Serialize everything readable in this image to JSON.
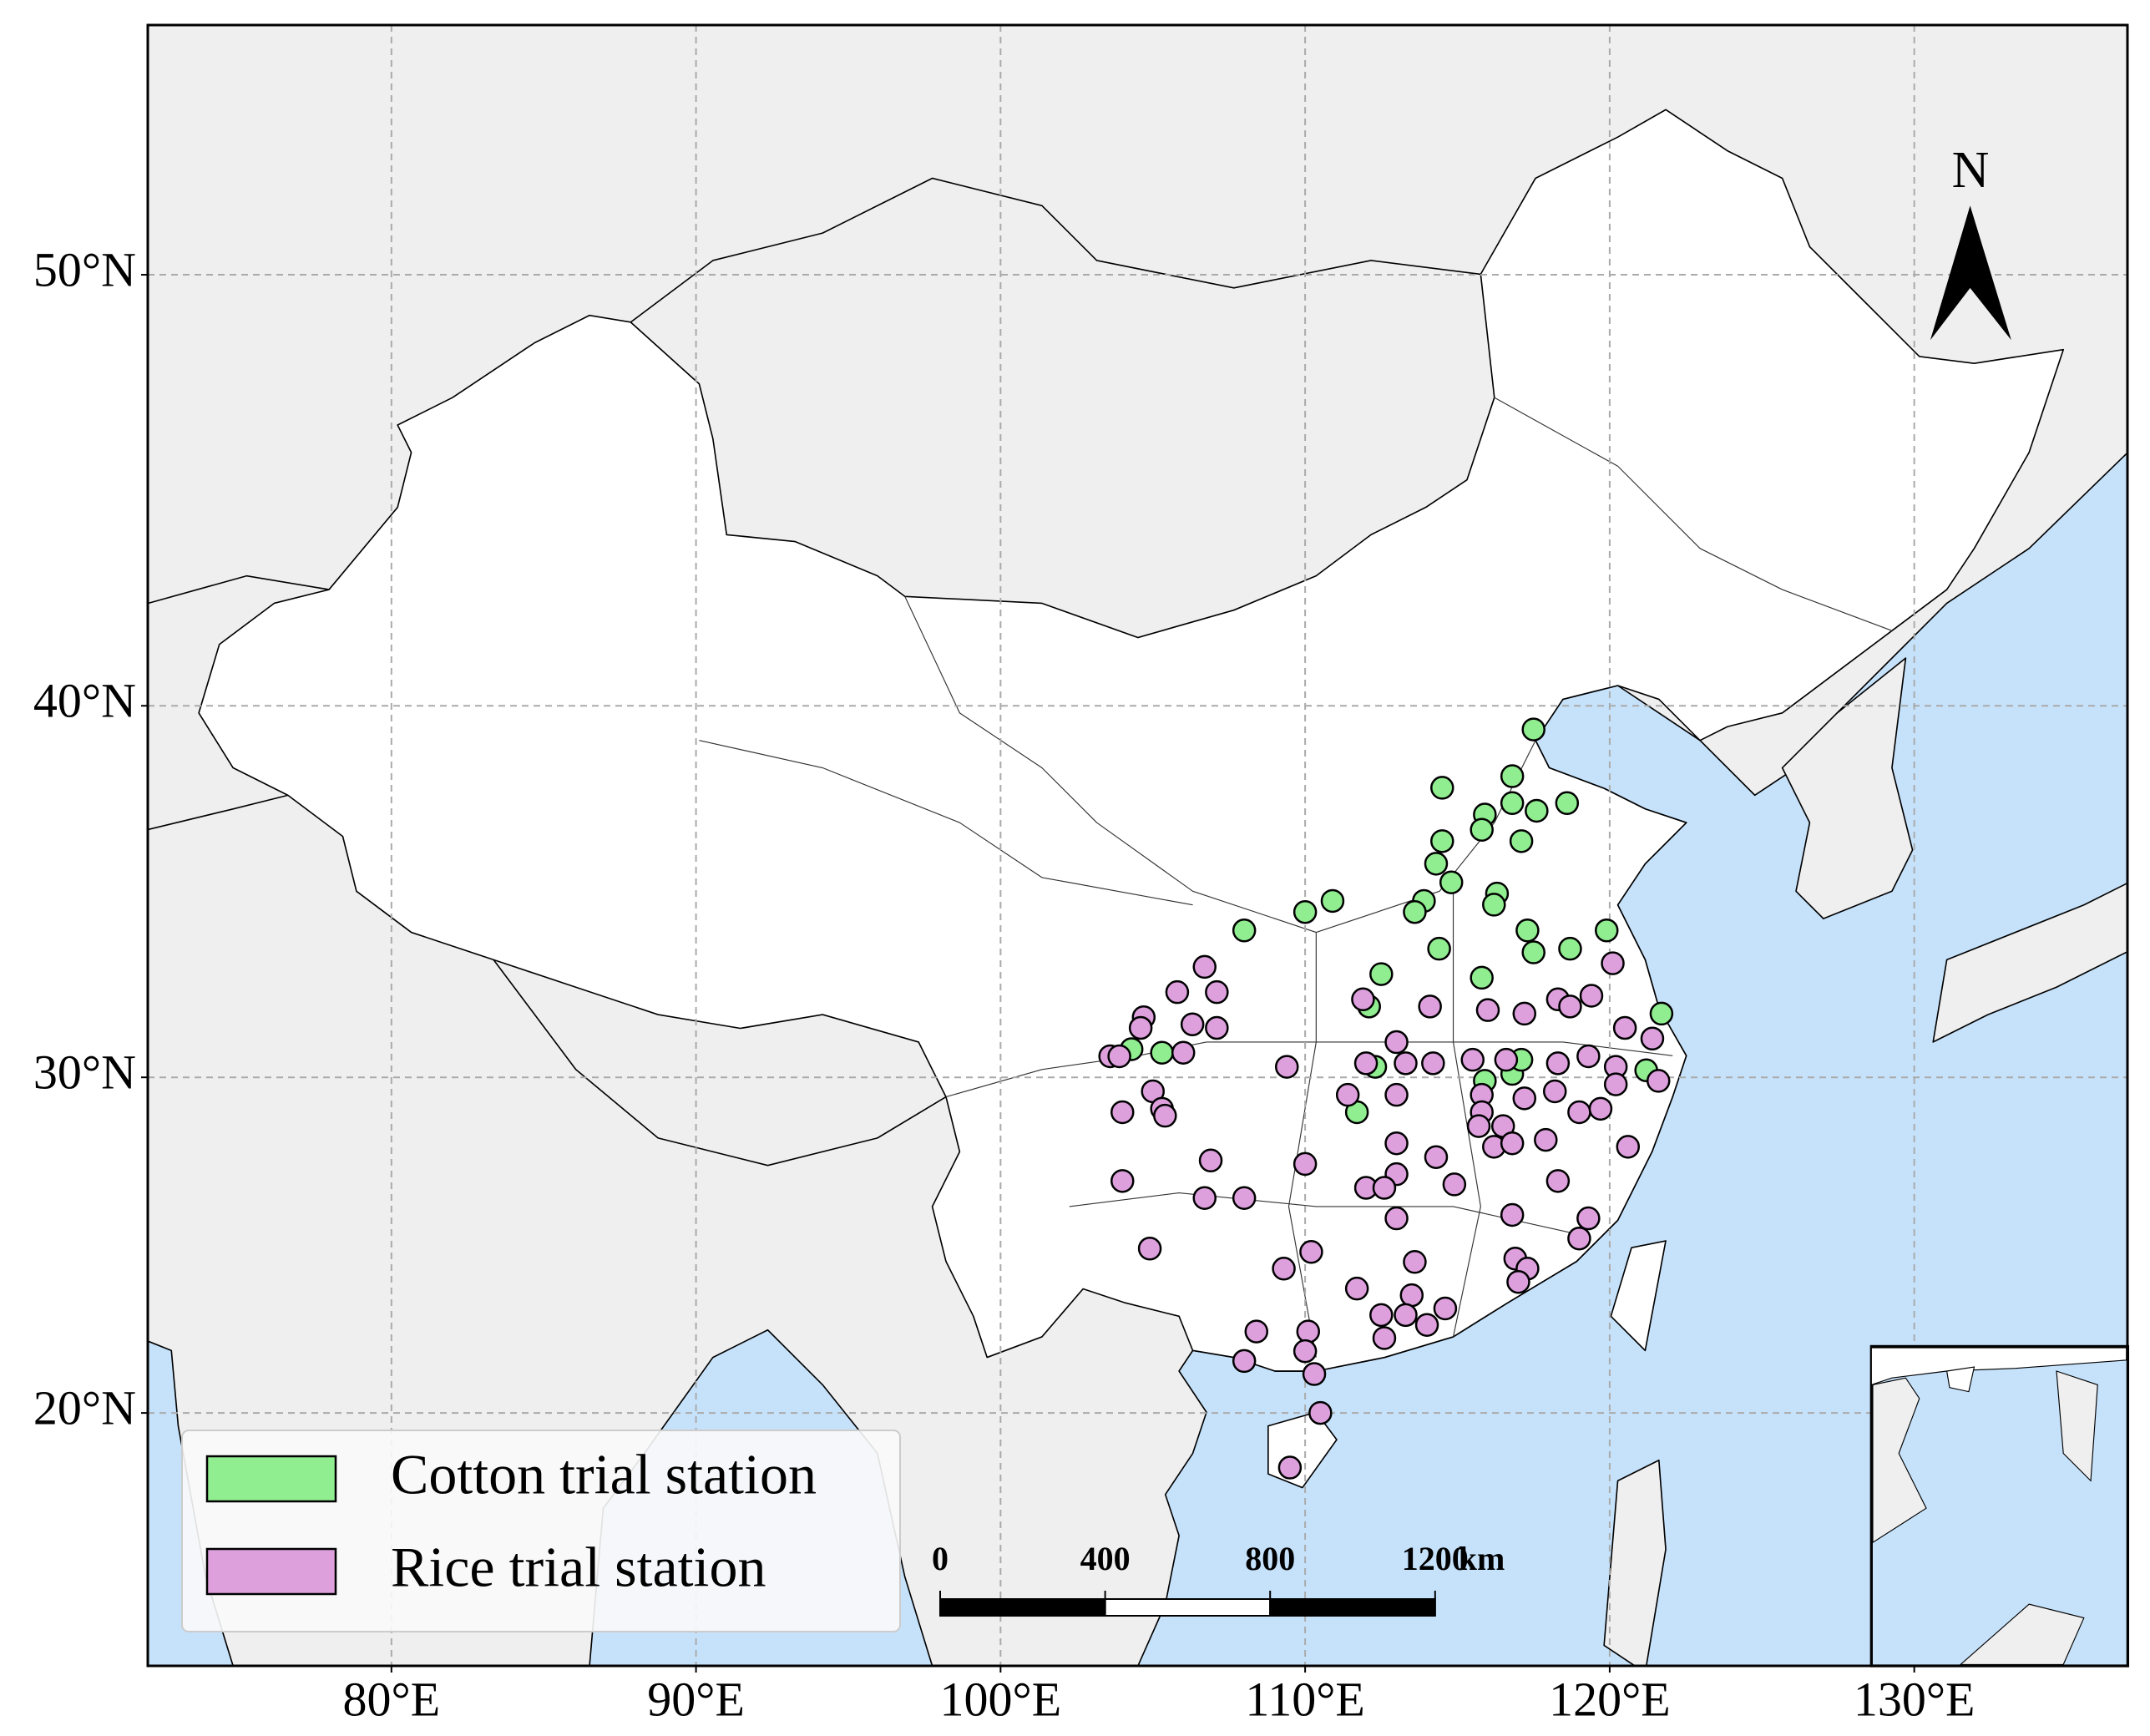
{
  "chart_data": {
    "type": "scatter",
    "projection": "mercator",
    "xlim": [
      72,
      137
    ],
    "ylim": [
      12,
      55
    ],
    "xticks": [
      {
        "value": 80,
        "label": "80°E"
      },
      {
        "value": 90,
        "label": "90°E"
      },
      {
        "value": 100,
        "label": "100°E"
      },
      {
        "value": 110,
        "label": "110°E"
      },
      {
        "value": 120,
        "label": "120°E"
      },
      {
        "value": 130,
        "label": "130°E"
      }
    ],
    "yticks": [
      {
        "value": 20,
        "label": "20°N"
      },
      {
        "value": 30,
        "label": "30°N"
      },
      {
        "value": 40,
        "label": "40°N"
      },
      {
        "value": 50,
        "label": "50°N"
      }
    ],
    "grid": true,
    "legend": "lower left",
    "series": [
      {
        "name": "Cotton trial station",
        "color": "#90ee90",
        "x": [
          117.5,
          114.5,
          116.8,
          116.8,
          118.6,
          117.6,
          115.9,
          115.8,
          114.5,
          117.1,
          114.3,
          114.8,
          116.3,
          116.2,
          113.9,
          113.6,
          117.3,
          114.4,
          117.5,
          108.0,
          110.0,
          110.9,
          119.9,
          118.7,
          112.5,
          115.8,
          121.7,
          112.1,
          104.3,
          105.3,
          115.9,
          116.8,
          117.1,
          121.2,
          111.7,
          112.3
        ],
        "values": [
          39.4,
          37.9,
          38.2,
          37.5,
          37.5,
          37.3,
          37.2,
          36.8,
          36.5,
          36.5,
          35.9,
          35.4,
          35.1,
          34.8,
          34.9,
          34.6,
          34.1,
          33.6,
          33.5,
          34.1,
          34.6,
          34.9,
          34.1,
          33.6,
          32.9,
          32.8,
          31.8,
          32.0,
          30.8,
          30.7,
          29.9,
          30.1,
          30.5,
          30.2,
          29.0,
          30.3
        ]
      },
      {
        "name": "Rice trial station",
        "color": "#dda0dd",
        "x": [
          106.7,
          105.8,
          107.1,
          104.7,
          106.3,
          107.1,
          104.6,
          103.6,
          103.9,
          106.0,
          109.4,
          111.9,
          113.0,
          114.1,
          116.0,
          117.2,
          118.3,
          119.4,
          118.7,
          120.1,
          121.4,
          120.5,
          119.3,
          112.0,
          113.3,
          114.2,
          115.5,
          116.6,
          118.3,
          121.6,
          120.2,
          120.2,
          115.8,
          117.2,
          118.2,
          111.4,
          113.0,
          105.0,
          105.3,
          104.0,
          105.4,
          115.8,
          116.5,
          115.7,
          116.2,
          116.8,
          119.0,
          119.7,
          117.9,
          120.6,
          113.0,
          114.3,
          106.9,
          110.0,
          113.0,
          114.9,
          104.0,
          106.7,
          108.0,
          112.0,
          112.6,
          118.3,
          116.8,
          113.0,
          119.3,
          119.0,
          104.9,
          110.2,
          109.3,
          113.6,
          116.9,
          117.3,
          117.0,
          111.7,
          113.5,
          112.5,
          113.3,
          114.6,
          114.0,
          108.4,
          110.1,
          112.6,
          108.0,
          110.0,
          110.3,
          110.5,
          109.5
        ],
        "values": [
          33.1,
          32.4,
          32.4,
          31.7,
          31.5,
          31.4,
          31.4,
          30.6,
          30.6,
          30.7,
          30.3,
          32.2,
          31.0,
          32.0,
          31.9,
          31.8,
          32.2,
          32.3,
          32.0,
          33.2,
          31.1,
          31.4,
          30.6,
          30.4,
          30.4,
          30.4,
          30.5,
          30.5,
          30.4,
          29.9,
          30.3,
          29.8,
          29.5,
          29.4,
          29.6,
          29.5,
          29.5,
          29.6,
          29.1,
          29.0,
          28.9,
          29.0,
          28.6,
          28.6,
          28.0,
          28.1,
          29.0,
          29.1,
          28.2,
          28.0,
          28.1,
          27.7,
          27.6,
          27.5,
          27.2,
          26.9,
          27.0,
          26.5,
          26.5,
          26.8,
          26.8,
          27.0,
          26.0,
          25.9,
          25.9,
          25.3,
          25.0,
          24.9,
          24.4,
          24.6,
          24.7,
          24.4,
          24.0,
          23.8,
          23.6,
          23.0,
          23.0,
          23.2,
          22.7,
          22.5,
          22.5,
          22.3,
          21.6,
          21.9,
          21.2,
          20.0,
          18.3
        ]
      }
    ],
    "north_arrow": "N",
    "scale_bar": {
      "ticks": [
        0,
        400,
        800,
        1200
      ],
      "unit": "km"
    }
  }
}
